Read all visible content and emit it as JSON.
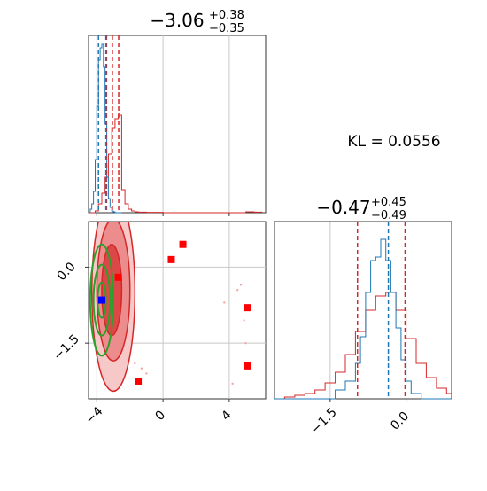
{
  "kl_label": "KL = 0.0556",
  "colors": {
    "red": "#d62728",
    "blue": "#1f77b4",
    "green": "#2ca02c",
    "marker_blue": "#0000ff",
    "marker_red": "#ff0000",
    "grid": "#c8c8c8",
    "axis": "#333333"
  },
  "chart_data": [
    {
      "type": "histogram",
      "panel": "top-left",
      "title_main": "−3.06",
      "title_sup": "+0.38",
      "title_sub": "−0.35",
      "xlim": [
        -4.5,
        6.2
      ],
      "median": -3.06,
      "quantiles": [
        -3.41,
        -2.68
      ],
      "blue_quantiles": [
        -3.9,
        -3.45
      ],
      "x_grid": [
        -4,
        0,
        4
      ],
      "x_ticks": [
        -4,
        0,
        4
      ],
      "series": [
        {
          "color": "red",
          "x": [
            -4.5,
            -4.3,
            -4.1,
            -3.9,
            -3.7,
            -3.5,
            -3.3,
            -3.1,
            -2.9,
            -2.7,
            -2.5,
            -2.3,
            -2.1,
            -1.9,
            -1.7,
            -1.5,
            -1.0,
            0.0,
            1.0,
            2.0,
            3.0,
            4.0,
            4.5,
            5.0,
            5.5,
            6.0
          ],
          "y": [
            0.0,
            0.0,
            0.01,
            0.05,
            0.11,
            0.2,
            0.33,
            0.48,
            0.53,
            0.55,
            0.13,
            0.05,
            0.02,
            0.01,
            0.005,
            0.003,
            0.002,
            0.0,
            0.0,
            0.0,
            0.0,
            0.0,
            0.0,
            0.005,
            0.003,
            0.0
          ]
        },
        {
          "color": "blue",
          "x": [
            -4.5,
            -4.4,
            -4.3,
            -4.2,
            -4.1,
            -4.0,
            -3.9,
            -3.8,
            -3.7,
            -3.6,
            -3.5,
            -3.4,
            -3.3,
            -3.2,
            -3.1,
            -3.0,
            -2.9,
            -2.5
          ],
          "y": [
            0.0,
            0.02,
            0.05,
            0.12,
            0.3,
            0.6,
            0.86,
            0.93,
            0.95,
            0.82,
            0.5,
            0.2,
            0.08,
            0.03,
            0.01,
            0.005,
            0.0,
            0.0
          ]
        }
      ]
    },
    {
      "type": "scatter",
      "panel": "bottom-left",
      "xlim": [
        -4.5,
        6.2
      ],
      "ylim": [
        -2.6,
        0.9
      ],
      "x_ticks": [
        -4,
        0,
        4
      ],
      "y_ticks": [
        0.0,
        -1.5
      ],
      "x_tick_labels": [
        "−4",
        "0",
        "4"
      ],
      "y_tick_labels": [
        "0.0",
        "−1.5"
      ],
      "red_squares": [
        [
          1.2,
          0.45
        ],
        [
          0.5,
          0.15
        ],
        [
          -2.7,
          -0.2
        ],
        [
          5.1,
          -0.8
        ],
        [
          5.1,
          -1.95
        ],
        [
          -1.5,
          -2.25
        ]
      ],
      "blue_square": [
        -3.7,
        -0.65
      ],
      "red_contours": [
        {
          "cx": -3.0,
          "cy": -0.5,
          "rx": 1.3,
          "ry": 1.95
        },
        {
          "cx": -3.0,
          "cy": -0.45,
          "rx": 1.0,
          "ry": 1.4
        },
        {
          "cx": -3.1,
          "cy": -0.45,
          "rx": 0.6,
          "ry": 0.9
        }
      ],
      "green_contours": [
        {
          "cx": -3.7,
          "cy": -0.65,
          "rx": 0.7,
          "ry": 1.1
        },
        {
          "cx": -3.7,
          "cy": -0.65,
          "rx": 0.5,
          "ry": 0.7
        },
        {
          "cx": -3.7,
          "cy": -0.65,
          "rx": 0.25,
          "ry": 0.35
        }
      ],
      "outlier_points": [
        [
          4.5,
          -0.45
        ],
        [
          4.7,
          -0.35
        ],
        [
          4.9,
          -1.05
        ],
        [
          5.0,
          -1.5
        ],
        [
          4.2,
          -2.3
        ],
        [
          -1.7,
          -1.9
        ],
        [
          -1.3,
          -2.0
        ],
        [
          -2.0,
          -1.7
        ],
        [
          -1.0,
          -2.1
        ],
        [
          3.7,
          -0.7
        ]
      ]
    },
    {
      "type": "histogram",
      "panel": "bottom-right",
      "title_main": "−0.47",
      "title_sup": "+0.45",
      "title_sub": "−0.49",
      "xlim": [
        -2.6,
        0.9
      ],
      "median": -0.47,
      "quantiles": [
        -0.96,
        -0.02
      ],
      "blue_quantiles": [
        -0.35
      ],
      "x_grid": [
        -1.5,
        0.0
      ],
      "x_ticks": [
        -1.5,
        0.0
      ],
      "x_tick_labels": [
        "−1.5",
        "0.0"
      ],
      "series": [
        {
          "color": "red",
          "x": [
            -2.6,
            -2.4,
            -2.2,
            -2.0,
            -1.8,
            -1.6,
            -1.4,
            -1.2,
            -1.0,
            -0.8,
            -0.6,
            -0.4,
            -0.2,
            0.0,
            0.2,
            0.4,
            0.6,
            0.8,
            0.9
          ],
          "y": [
            0.0,
            0.01,
            0.02,
            0.03,
            0.05,
            0.09,
            0.15,
            0.25,
            0.38,
            0.5,
            0.58,
            0.6,
            0.5,
            0.34,
            0.2,
            0.12,
            0.06,
            0.03,
            0.0
          ]
        },
        {
          "color": "blue",
          "x": [
            -2.6,
            -1.6,
            -1.4,
            -1.2,
            -1.0,
            -0.9,
            -0.8,
            -0.7,
            -0.6,
            -0.5,
            -0.4,
            -0.3,
            -0.2,
            -0.1,
            0.0,
            0.1,
            0.3,
            0.9
          ],
          "y": [
            0.0,
            0.0,
            0.05,
            0.1,
            0.2,
            0.35,
            0.6,
            0.78,
            0.8,
            0.9,
            0.78,
            0.6,
            0.4,
            0.22,
            0.1,
            0.03,
            0.0,
            0.0
          ]
        }
      ]
    }
  ]
}
